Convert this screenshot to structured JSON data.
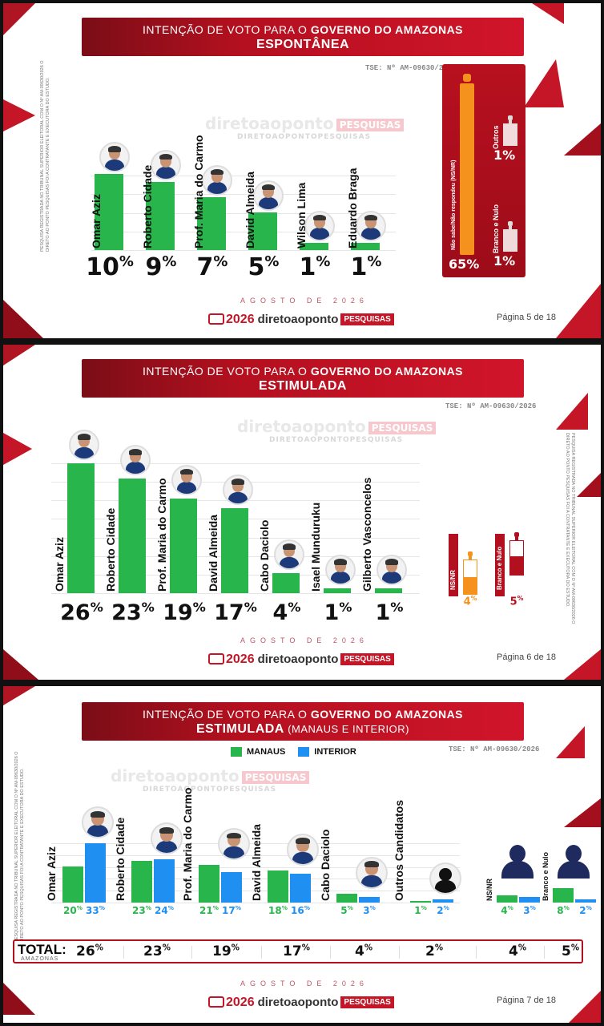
{
  "colors": {
    "green": "#28b54c",
    "blue": "#1f8ff2",
    "red": "#c41627",
    "orange": "#f5921e"
  },
  "common": {
    "title_prefix": "INTENÇÃO DE VOTO PARA O",
    "title_strong": "GOVERNO DO AMAZONAS",
    "tse": "TSE: Nº AM-09630/2026",
    "date": "AGOSTO DE 2026",
    "logo_year": "2026",
    "logo_name": "diretoaoponto",
    "logo_pill": "PESQUISAS",
    "watermark_sub": "DIRETOAOPONTOPESQUISAS",
    "registry": "PESQUISA REGISTRADA NO TRIBUNAL SUPERIOR ELEITORAL COM O Nº AM-09630/2026 O DIRETO AO PONTO PESQUISAS FOI A CONTRATANTE E EXECUTORA DO ESTUDO."
  },
  "chart_data": [
    {
      "type": "bar",
      "title": "INTENÇÃO DE VOTO PARA O GOVERNO DO AMAZONAS",
      "subtitle": "ESPONTÂNEA",
      "categories": [
        "Omar Aziz",
        "Roberto Cidade",
        "Prof. Maria do Carmo",
        "David Almeida",
        "Wilson Lima",
        "Eduardo Braga"
      ],
      "values": [
        10,
        9,
        7,
        5,
        1,
        1
      ],
      "side": [
        {
          "label": "Não sabe/Não respondeu (NS/NR)",
          "value": 65
        },
        {
          "label": "Outros",
          "value": 1
        },
        {
          "label": "Branco e Nulo",
          "value": 1
        }
      ],
      "page": "Página 5 de 18"
    },
    {
      "type": "bar",
      "title": "INTENÇÃO DE VOTO PARA O GOVERNO DO AMAZONAS",
      "subtitle": "ESTIMULADA",
      "categories": [
        "Omar Aziz",
        "Roberto Cidade",
        "Prof. Maria do Carmo",
        "David Almeida",
        "Cabo Daciolo",
        "Isael Munduruku",
        "Gilberto Vasconcelos"
      ],
      "values": [
        26,
        23,
        19,
        17,
        4,
        1,
        1
      ],
      "side": [
        {
          "label": "NS/NR",
          "value": 4
        },
        {
          "label": "Branco e Nulo",
          "value": 5
        }
      ],
      "page": "Página 6 de 18"
    },
    {
      "type": "bar",
      "title": "INTENÇÃO DE VOTO PARA O GOVERNO DO AMAZONAS",
      "subtitle": "ESTIMULADA",
      "subtitle_extra": "(MANAUS E INTERIOR)",
      "categories": [
        "Omar Aziz",
        "Roberto Cidade",
        "Prof. Maria do Carmo",
        "David Almeida",
        "Cabo Daciolo",
        "Outros Candidatos",
        "NS/NR",
        "Branco e Nulo"
      ],
      "series": [
        {
          "name": "MANAUS",
          "values": [
            20,
            23,
            21,
            18,
            5,
            1,
            4,
            8
          ]
        },
        {
          "name": "INTERIOR",
          "values": [
            33,
            24,
            17,
            16,
            3,
            2,
            3,
            2
          ]
        }
      ],
      "totals_label": "TOTAL:",
      "totals_sub": "AMAZONAS",
      "totals": [
        26,
        23,
        19,
        17,
        4,
        2,
        4,
        5
      ],
      "page": "Página 7 de 18"
    }
  ]
}
